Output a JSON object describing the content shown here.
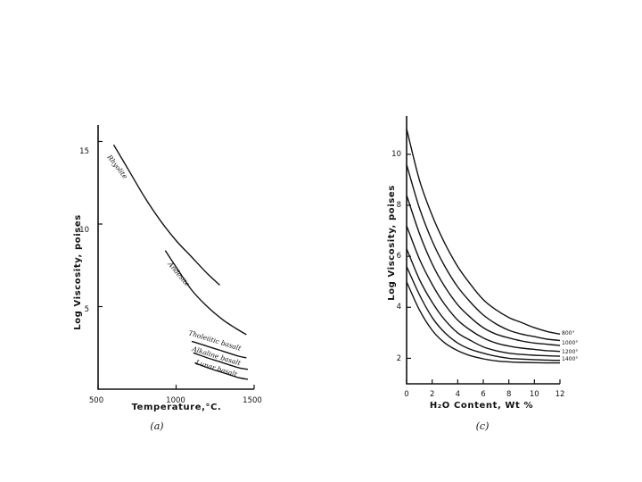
{
  "chart_data": [
    {
      "type": "line",
      "caption": "(a)",
      "xlabel": "Temperature,°C.",
      "ylabel": "Log Viscosity, poises",
      "xlim": [
        500,
        1500
      ],
      "ylim": [
        0,
        16
      ],
      "x_ticks": [
        500,
        1000,
        1500
      ],
      "y_ticks": [
        5,
        10,
        15
      ],
      "series": [
        {
          "name": "Rhyolite",
          "x": [
            600,
            700,
            800,
            900,
            1000,
            1100,
            1200,
            1280
          ],
          "y": [
            14.8,
            13.2,
            11.6,
            10.2,
            9.0,
            8.0,
            7.0,
            6.3
          ]
        },
        {
          "name": "Andesite",
          "x": [
            930,
            1000,
            1100,
            1200,
            1300,
            1380,
            1450
          ],
          "y": [
            8.4,
            7.4,
            6.0,
            5.0,
            4.2,
            3.7,
            3.3
          ]
        },
        {
          "name": "Tholeiitic basalt",
          "x": [
            1100,
            1200,
            1300,
            1400,
            1450
          ],
          "y": [
            2.9,
            2.6,
            2.3,
            2.0,
            1.9
          ]
        },
        {
          "name": "Alkaline basalt",
          "x": [
            1110,
            1200,
            1300,
            1400,
            1460
          ],
          "y": [
            2.2,
            1.9,
            1.6,
            1.3,
            1.2
          ]
        },
        {
          "name": "Lunar basalt",
          "x": [
            1120,
            1200,
            1300,
            1400,
            1460
          ],
          "y": [
            1.6,
            1.3,
            1.0,
            0.7,
            0.6
          ]
        }
      ]
    },
    {
      "type": "line",
      "caption": "(c)",
      "xlabel": "H₂O Content, Wt %",
      "ylabel": "Log Viscosity, poises",
      "xlim": [
        0,
        12
      ],
      "ylim": [
        1,
        11.5
      ],
      "x_ticks": [
        0,
        2,
        4,
        6,
        8,
        10,
        12
      ],
      "y_ticks": [
        2,
        4,
        6,
        8,
        10
      ],
      "x": [
        0,
        1,
        2,
        3,
        4,
        5,
        6,
        7,
        8,
        9,
        10,
        11,
        12
      ],
      "series": [
        {
          "name": "800°",
          "values": [
            11.0,
            9.0,
            7.6,
            6.5,
            5.6,
            4.9,
            4.3,
            3.9,
            3.6,
            3.4,
            3.2,
            3.05,
            2.95
          ]
        },
        {
          "name": "",
          "values": [
            9.6,
            7.9,
            6.6,
            5.6,
            4.8,
            4.2,
            3.7,
            3.35,
            3.1,
            2.95,
            2.85,
            2.75,
            2.7
          ]
        },
        {
          "name": "1000°",
          "values": [
            8.4,
            6.9,
            5.7,
            4.8,
            4.1,
            3.6,
            3.2,
            2.95,
            2.8,
            2.68,
            2.6,
            2.55,
            2.5
          ]
        },
        {
          "name": "",
          "values": [
            7.2,
            5.9,
            4.9,
            4.1,
            3.5,
            3.1,
            2.8,
            2.6,
            2.48,
            2.4,
            2.35,
            2.3,
            2.27
          ]
        },
        {
          "name": "1200°",
          "values": [
            6.3,
            5.1,
            4.2,
            3.5,
            3.0,
            2.7,
            2.45,
            2.3,
            2.2,
            2.15,
            2.12,
            2.1,
            2.08
          ]
        },
        {
          "name": "",
          "values": [
            5.6,
            4.5,
            3.6,
            3.0,
            2.6,
            2.35,
            2.2,
            2.08,
            2.0,
            1.97,
            1.95,
            1.93,
            1.92
          ]
        },
        {
          "name": "1400°",
          "values": [
            5.0,
            3.9,
            3.1,
            2.6,
            2.3,
            2.1,
            1.98,
            1.9,
            1.86,
            1.84,
            1.83,
            1.82,
            1.82
          ]
        }
      ]
    }
  ]
}
